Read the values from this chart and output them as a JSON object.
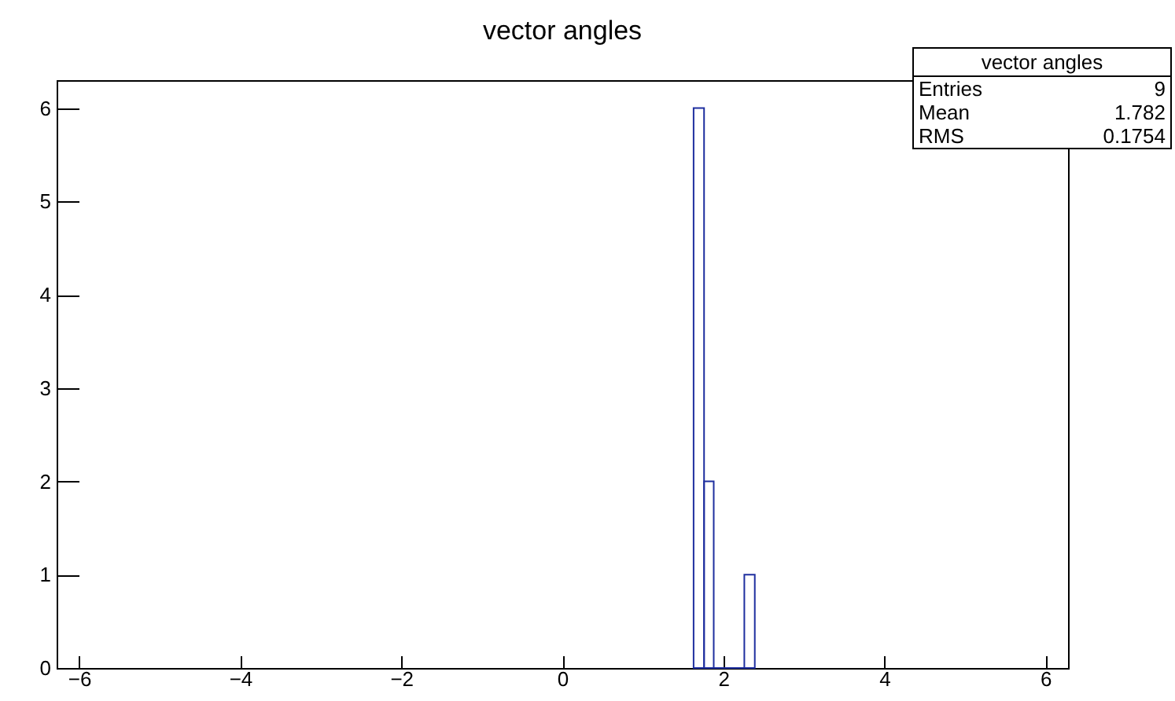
{
  "chart_data": {
    "type": "histogram",
    "title": "vector angles",
    "bins": [
      1.63,
      1.76,
      1.88,
      2.26,
      2.39
    ],
    "values": [
      6,
      2,
      0,
      1
    ],
    "color": "#1f2f9f",
    "xlim": [
      -6.28,
      6.28
    ],
    "xticks": [
      -6,
      -4,
      -2,
      0,
      2,
      4,
      6
    ],
    "ylim": [
      0,
      6.3
    ],
    "yticks": [
      0,
      1,
      2,
      3,
      4,
      5,
      6
    ],
    "grid": false,
    "annotations": [
      "vector angles",
      "Entries",
      "9",
      "Mean",
      "1.782",
      "RMS",
      "0.1754"
    ]
  }
}
